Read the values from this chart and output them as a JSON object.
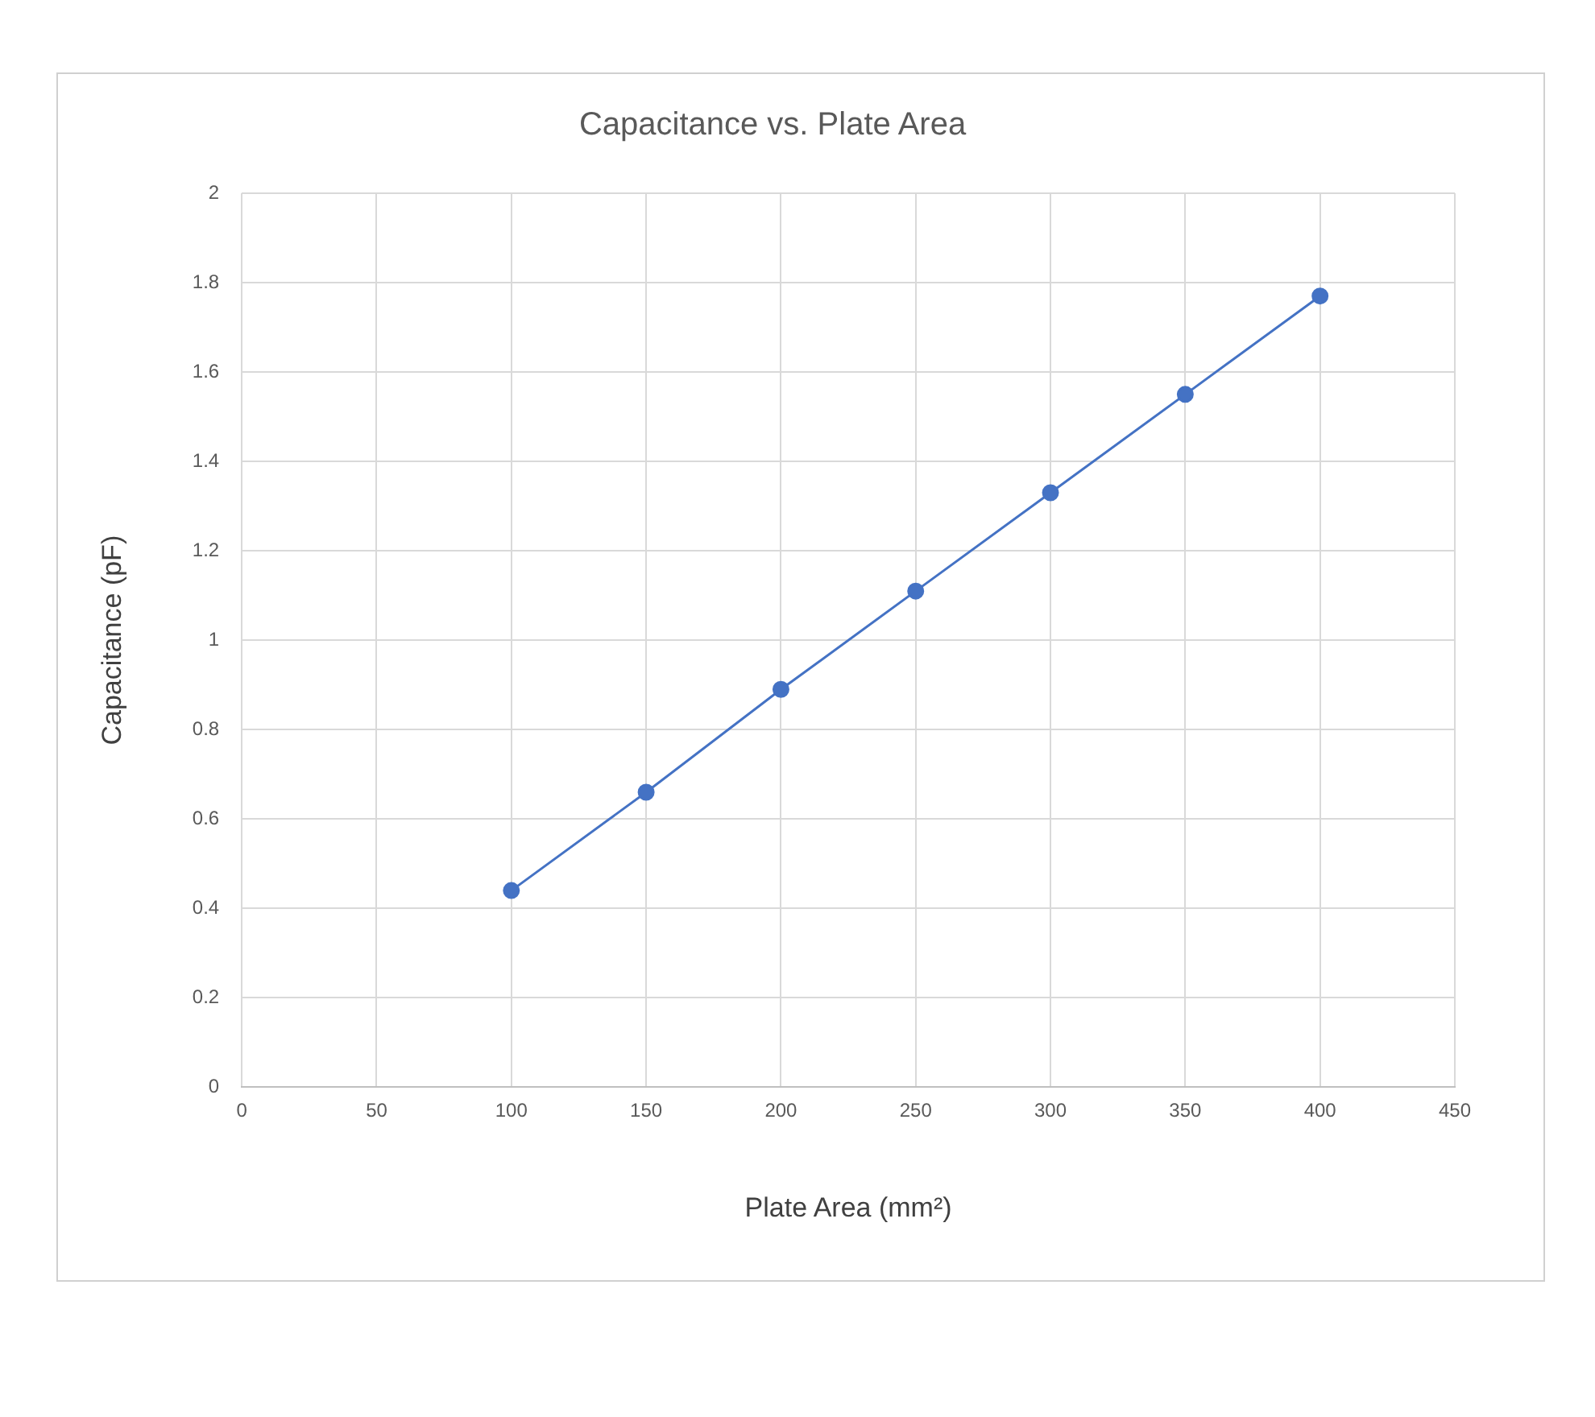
{
  "chart_data": {
    "type": "line",
    "title": "Capacitance vs. Plate Area",
    "xlabel": "Plate Area (mm²)",
    "ylabel": "Capacitance (pF)",
    "x": [
      100,
      150,
      200,
      250,
      300,
      350,
      400
    ],
    "series": [
      {
        "color": "#4472c4",
        "values": [
          0.44,
          0.66,
          0.89,
          1.11,
          1.33,
          1.55,
          1.77
        ]
      }
    ],
    "xlim": [
      0,
      450
    ],
    "xticks": [
      0,
      50,
      100,
      150,
      200,
      250,
      300,
      350,
      400,
      450
    ],
    "ylim": [
      0,
      2
    ],
    "yticks": [
      0,
      0.2,
      0.4,
      0.6,
      0.8,
      1,
      1.2,
      1.4,
      1.6,
      1.8,
      2
    ],
    "grid": true,
    "marker": "circle",
    "line_style": "solid",
    "legend": false
  }
}
